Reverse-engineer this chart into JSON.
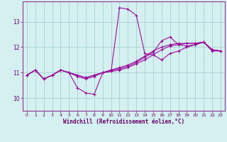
{
  "xlabel": "Windchill (Refroidissement éolien,°C)",
  "bg_color": "#d4f0f0",
  "line_color": "#990099",
  "grid_color": "#a0cccc",
  "axis_color": "#660066",
  "spine_color": "#993399",
  "xlim": [
    -0.5,
    23.5
  ],
  "ylim": [
    9.5,
    13.8
  ],
  "yticks": [
    10,
    11,
    12,
    13
  ],
  "xticks": [
    0,
    1,
    2,
    3,
    4,
    5,
    6,
    7,
    8,
    9,
    10,
    11,
    12,
    13,
    14,
    15,
    16,
    17,
    18,
    19,
    20,
    21,
    22,
    23
  ],
  "series": [
    [
      10.9,
      11.1,
      10.75,
      10.9,
      11.1,
      11.0,
      10.4,
      10.2,
      10.15,
      11.0,
      11.05,
      13.55,
      13.5,
      13.25,
      11.75,
      11.7,
      11.5,
      11.75,
      11.85,
      12.0,
      12.1,
      12.2,
      11.9,
      11.85
    ],
    [
      10.9,
      11.1,
      10.75,
      10.9,
      11.1,
      11.0,
      10.85,
      10.75,
      10.85,
      11.0,
      11.05,
      11.1,
      11.2,
      11.35,
      11.5,
      11.7,
      11.9,
      12.05,
      12.1,
      12.15,
      12.15,
      12.2,
      11.85,
      11.85
    ],
    [
      10.9,
      11.1,
      10.75,
      10.9,
      11.1,
      11.0,
      10.9,
      10.8,
      10.9,
      11.0,
      11.1,
      11.15,
      11.25,
      11.4,
      11.6,
      11.8,
      12.25,
      12.4,
      12.1,
      12.05,
      12.1,
      12.2,
      11.9,
      11.85
    ],
    [
      10.9,
      11.1,
      10.75,
      10.9,
      11.1,
      11.0,
      10.9,
      10.8,
      10.9,
      11.0,
      11.1,
      11.2,
      11.3,
      11.45,
      11.65,
      11.85,
      12.0,
      12.1,
      12.15,
      12.15,
      12.15,
      12.2,
      11.9,
      11.85
    ]
  ]
}
